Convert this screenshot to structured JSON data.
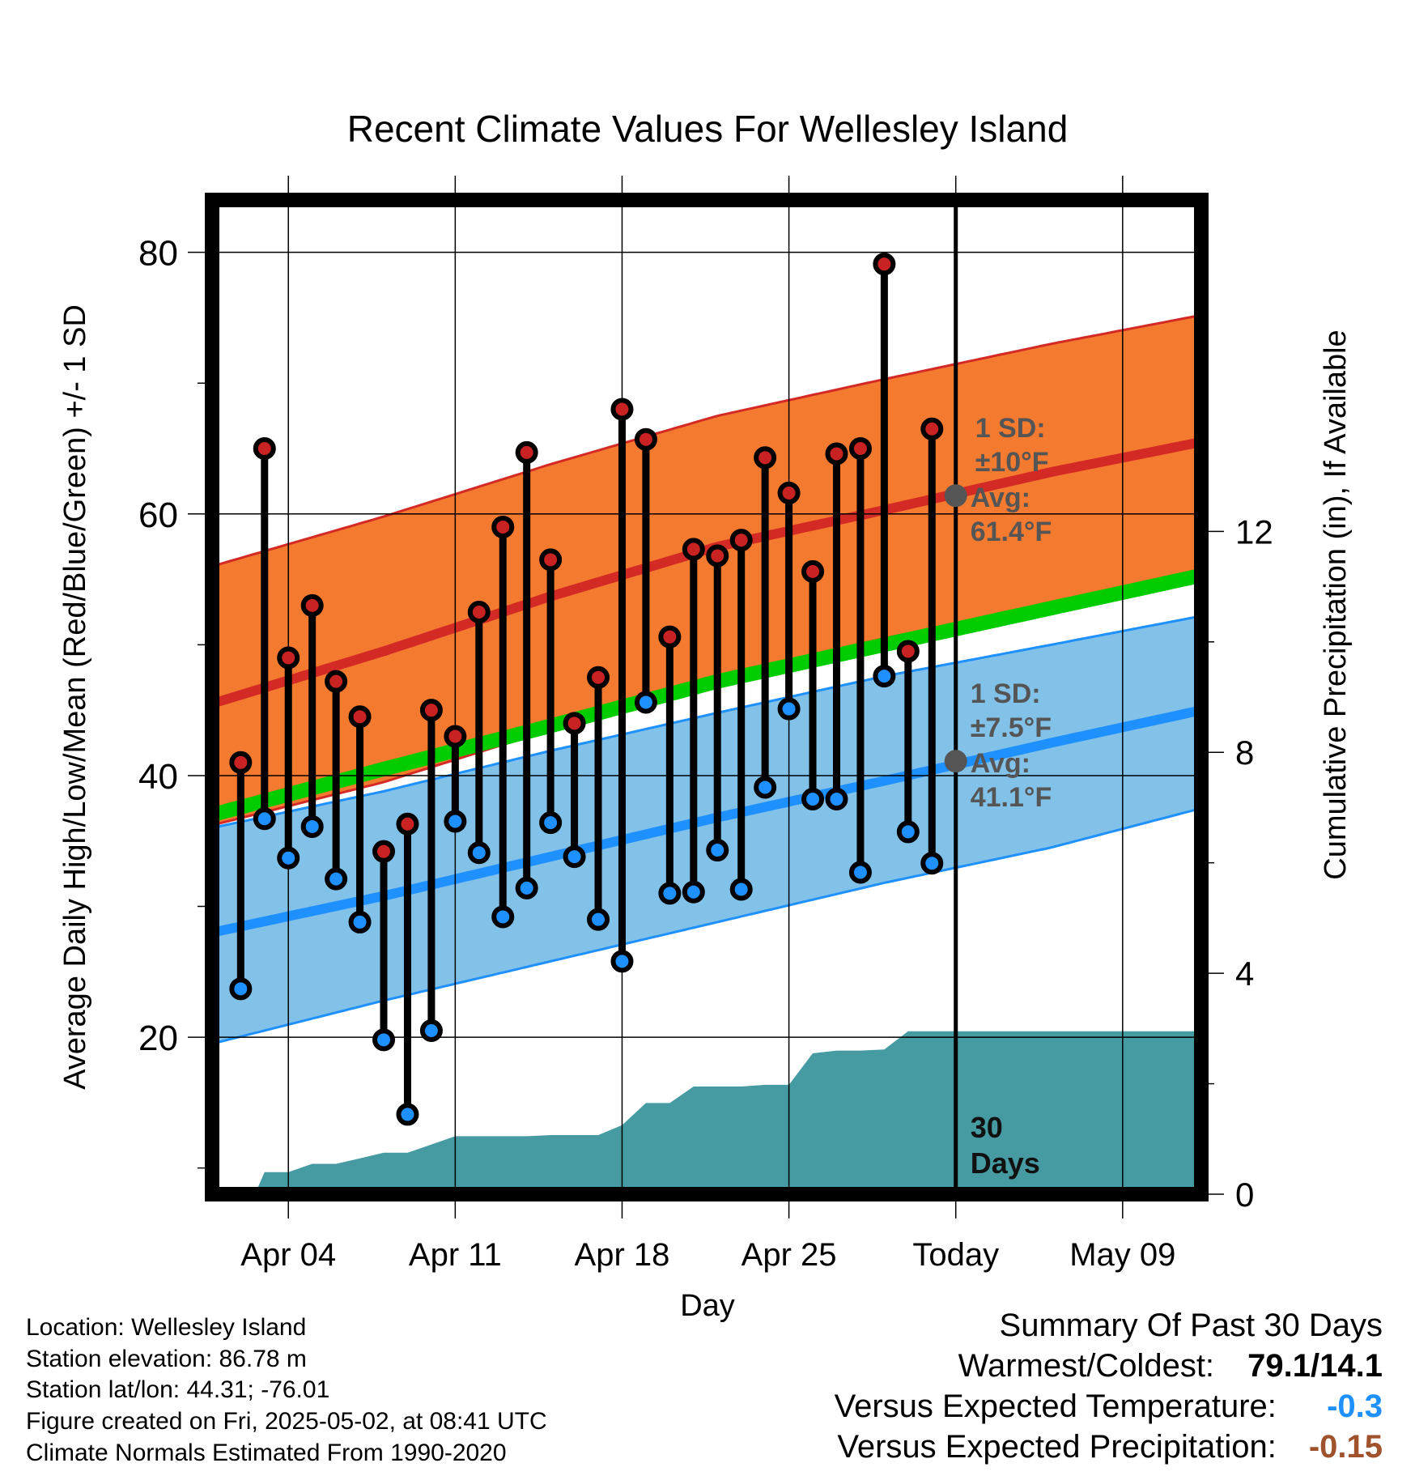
{
  "chart_data": {
    "type": "line",
    "title": "Recent Climate Values For Wellesley Island",
    "xlabel": "Day",
    "ylabel": "Average Daily High/Low/Mean (Red/Blue/Green) +/- 1 SD",
    "y2label": "Cumulative Precipitation (in), If Available",
    "ylim": [
      8,
      84
    ],
    "y2lim": [
      0,
      18
    ],
    "yticks": [
      20,
      40,
      60,
      80
    ],
    "y2ticks": [
      0,
      4,
      8,
      12
    ],
    "xlim": [
      0.8,
      42.3
    ],
    "xticks": [
      {
        "day": 4,
        "label": "Apr 04"
      },
      {
        "day": 11,
        "label": "Apr 11"
      },
      {
        "day": 18,
        "label": "Apr 18"
      },
      {
        "day": 25,
        "label": "Apr 25"
      },
      {
        "day": 32,
        "label": "Today"
      },
      {
        "day": 39,
        "label": "May 09"
      }
    ],
    "today_day": 32,
    "normals": {
      "days": [
        0.8,
        8,
        15,
        22,
        29,
        36,
        42.3
      ],
      "high_mean": [
        45.5,
        49.5,
        53.7,
        57.5,
        60.3,
        63.2,
        65.5
      ],
      "high_upper": [
        56.0,
        59.8,
        63.8,
        67.5,
        70.3,
        73.0,
        75.2
      ],
      "high_lower": [
        36.2,
        39.5,
        43.5,
        47.5,
        50.5,
        53.0,
        55.8
      ],
      "low_mean": [
        28.0,
        30.8,
        33.8,
        36.8,
        39.6,
        42.5,
        45.0
      ],
      "low_upper": [
        36.0,
        38.8,
        41.9,
        44.8,
        47.6,
        50.0,
        52.2
      ],
      "low_lower": [
        19.5,
        22.8,
        25.8,
        28.8,
        31.8,
        34.5,
        37.5
      ],
      "mean": [
        37.0,
        40.5,
        43.8,
        47.2,
        50.0,
        52.8,
        55.3
      ]
    },
    "series": [
      {
        "name": "High",
        "days": [
          2,
          3,
          4,
          5,
          6,
          7,
          8,
          9,
          10,
          11,
          12,
          13,
          14,
          15,
          16,
          17,
          18,
          19,
          20,
          21,
          22,
          23,
          24,
          25,
          26,
          27,
          28,
          29,
          30,
          31
        ],
        "values": [
          41.0,
          65.0,
          49.0,
          53.0,
          47.2,
          44.5,
          34.2,
          36.3,
          45.0,
          43.0,
          52.5,
          59.0,
          64.7,
          56.5,
          44.0,
          47.5,
          68.0,
          65.7,
          50.6,
          57.3,
          56.8,
          58.0,
          64.3,
          61.6,
          55.6,
          64.6,
          65.0,
          79.1,
          49.5,
          66.5
        ]
      },
      {
        "name": "Low",
        "days": [
          2,
          3,
          4,
          5,
          6,
          7,
          8,
          9,
          10,
          11,
          12,
          13,
          14,
          15,
          16,
          17,
          18,
          19,
          20,
          21,
          22,
          23,
          24,
          25,
          26,
          27,
          28,
          29,
          30,
          31
        ],
        "values": [
          23.7,
          36.7,
          33.7,
          36.1,
          32.1,
          28.8,
          19.8,
          14.1,
          20.5,
          36.5,
          34.1,
          29.2,
          31.4,
          36.4,
          33.8,
          29.0,
          25.8,
          45.6,
          31.0,
          31.1,
          34.3,
          31.3,
          39.1,
          45.1,
          38.2,
          38.2,
          32.6,
          47.6,
          35.7,
          33.3
        ]
      }
    ],
    "precip": {
      "days": [
        2,
        2.6,
        3,
        4,
        5,
        6,
        7,
        8,
        9,
        10,
        11,
        12,
        13,
        14,
        15,
        16,
        17,
        18,
        19,
        20,
        21,
        22,
        23,
        24,
        25,
        26,
        27,
        28,
        29,
        30,
        31,
        42.3
      ],
      "values": [
        0,
        0,
        0.4,
        0.4,
        0.55,
        0.55,
        0.65,
        0.75,
        0.75,
        0.9,
        1.05,
        1.05,
        1.05,
        1.05,
        1.07,
        1.07,
        1.07,
        1.25,
        1.65,
        1.65,
        1.95,
        1.95,
        1.95,
        1.98,
        1.98,
        2.55,
        2.6,
        2.6,
        2.62,
        2.95,
        2.95,
        2.95
      ]
    },
    "annotations": {
      "high_sd": "1 SD:",
      "high_sd_val": "±10°F",
      "high_avg": "Avg:",
      "high_avg_val": "61.4°F",
      "high_avg_value": 61.4,
      "low_sd": "1 SD:",
      "low_sd_val": "±7.5°F",
      "low_avg": "Avg:",
      "low_avg_val": "41.1°F",
      "low_avg_value": 41.1,
      "days_count": "30",
      "days_word": "Days"
    },
    "colors": {
      "high_band": "#f47a2f",
      "high_line": "#d42a26",
      "low_band": "#82c1e8",
      "low_line": "#1e90ff",
      "mean_line": "#00cc00",
      "precip": "#469ba3",
      "high_marker": "#c82222",
      "low_marker": "#1e90ff",
      "annot": "#555555"
    }
  },
  "info": {
    "location": "Location: Wellesley Island",
    "elevation": "Station elevation: 86.78 m",
    "latlon": "Station lat/lon: 44.31; -76.01",
    "created": "Figure created on Fri, 2025-05-02, at 08:41 UTC",
    "normals": "Climate Normals Estimated From 1990-2020"
  },
  "summary": {
    "title": "Summary Of Past 30 Days",
    "warm_label": "Warmest/Coldest:",
    "warm_value": "79.1/14.1",
    "temp_label": "Versus Expected Temperature:",
    "temp_value": "-0.3",
    "temp_color": "#1e90ff",
    "precip_label": "Versus Expected Precipitation:",
    "precip_value": "-0.15",
    "precip_color": "#a0522d"
  }
}
